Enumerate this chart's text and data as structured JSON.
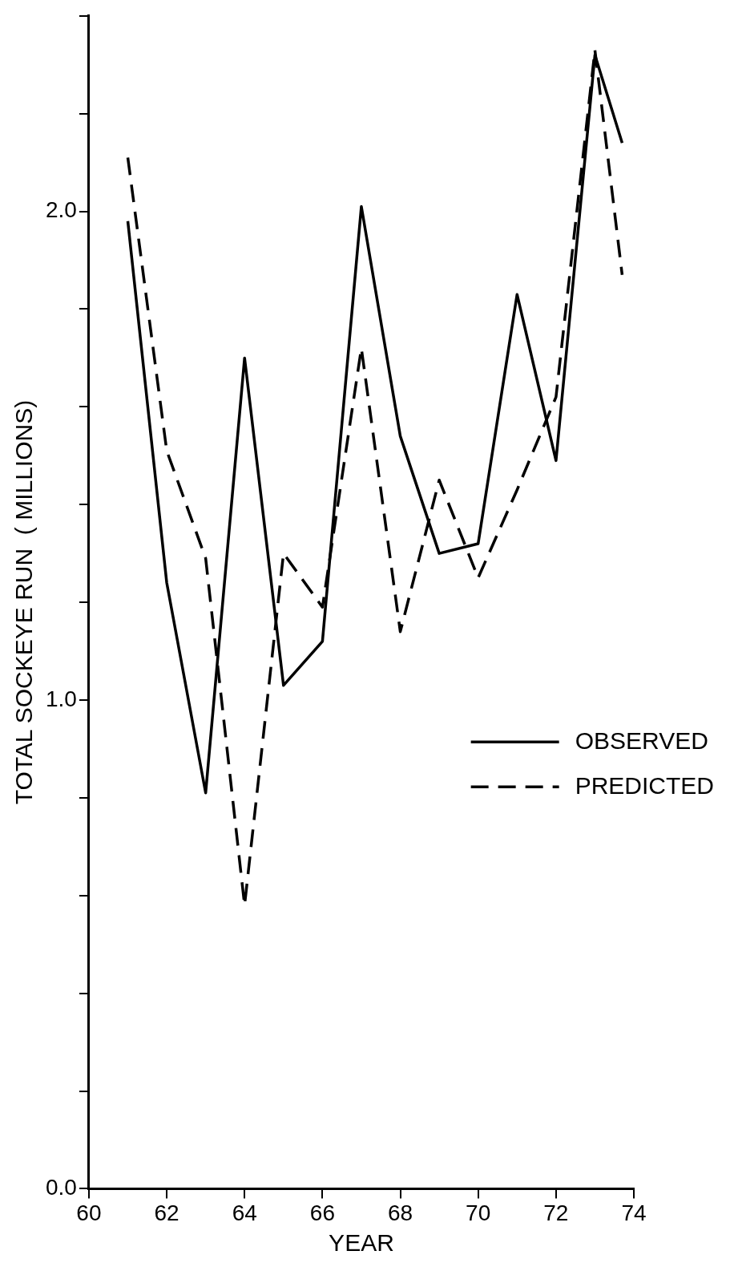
{
  "chart_data": {
    "type": "line",
    "xlabel": "YEAR",
    "ylabel": "TOTAL SOCKEYE RUN  ( MILLIONS)",
    "xlim": [
      60,
      74
    ],
    "xticks": [
      60,
      62,
      64,
      66,
      68,
      70,
      72,
      74
    ],
    "ylim": [
      0,
      2.4
    ],
    "yticks": [
      {
        "value": 0,
        "label": "0.0"
      },
      {
        "value": 0.2,
        "label": null
      },
      {
        "value": 0.4,
        "label": null
      },
      {
        "value": 0.6,
        "label": null
      },
      {
        "value": 0.8,
        "label": null
      },
      {
        "value": 1,
        "label": "1.0"
      },
      {
        "value": 1.2,
        "label": null
      },
      {
        "value": 1.4,
        "label": null
      },
      {
        "value": 1.6,
        "label": null
      },
      {
        "value": 1.8,
        "label": null
      },
      {
        "value": 2,
        "label": "2.0"
      },
      {
        "value": 2.2,
        "label": null
      },
      {
        "value": 2.4,
        "label": null
      }
    ],
    "grid": false,
    "legend": "right",
    "marker": "none",
    "series": [
      {
        "name": "OBSERVED",
        "color": "#000000",
        "line_style": "solid",
        "x": [
          61,
          62,
          63,
          64,
          65,
          66,
          67,
          68,
          69,
          70,
          71,
          72,
          73,
          73.7
        ],
        "values": [
          1.98,
          1.24,
          0.81,
          1.7,
          1.03,
          1.12,
          2.01,
          1.54,
          1.3,
          1.32,
          1.83,
          1.49,
          2.32,
          2.14
        ]
      },
      {
        "name": "PREDICTED",
        "color": "#000000",
        "line_style": "dashed",
        "x": [
          61,
          62,
          63,
          64,
          65,
          66,
          67,
          68,
          69,
          70,
          71,
          72,
          73,
          73.7
        ],
        "values": [
          2.11,
          1.51,
          1.29,
          0.58,
          1.3,
          1.19,
          1.72,
          1.14,
          1.45,
          1.25,
          1.43,
          1.62,
          2.33,
          1.87
        ]
      }
    ]
  }
}
